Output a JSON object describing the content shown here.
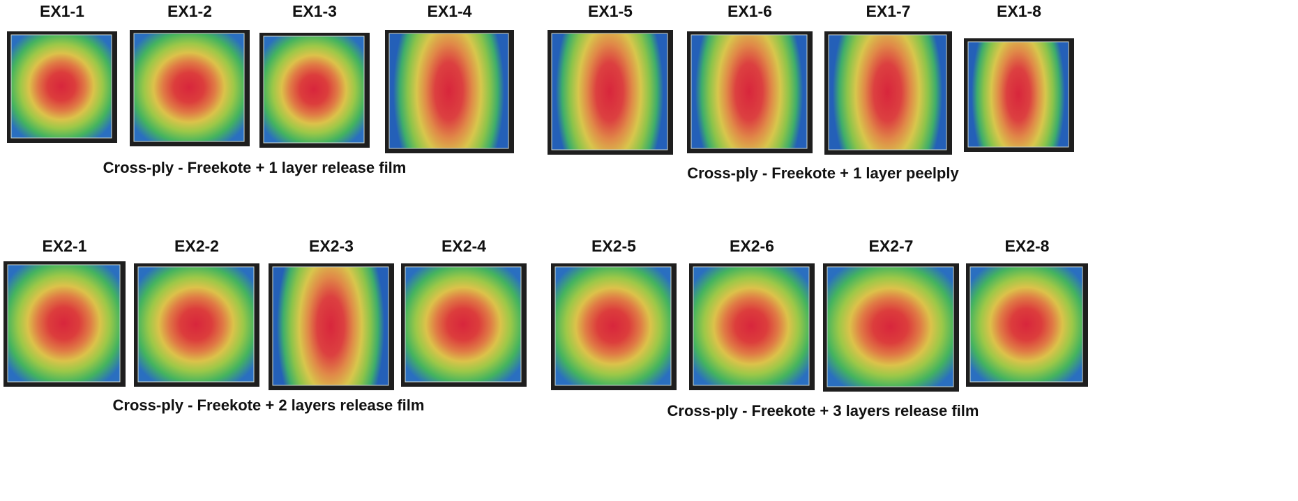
{
  "groups": [
    {
      "caption": "Cross-ply - Freekote + 1 layer release film",
      "panels": [
        "EX1-1",
        "EX1-2",
        "EX1-3",
        "EX1-4"
      ]
    },
    {
      "caption": "Cross-ply - Freekote + 1 layer peelply",
      "panels": [
        "EX1-5",
        "EX1-6",
        "EX1-7",
        "EX1-8"
      ]
    },
    {
      "caption": "Cross-ply - Freekote + 2 layers release film",
      "panels": [
        "EX2-1",
        "EX2-2",
        "EX2-3",
        "EX2-4"
      ]
    },
    {
      "caption": "Cross-ply - Freekote + 3 layers release film",
      "panels": [
        "EX2-5",
        "EX2-6",
        "EX2-7",
        "EX2-8"
      ]
    }
  ]
}
